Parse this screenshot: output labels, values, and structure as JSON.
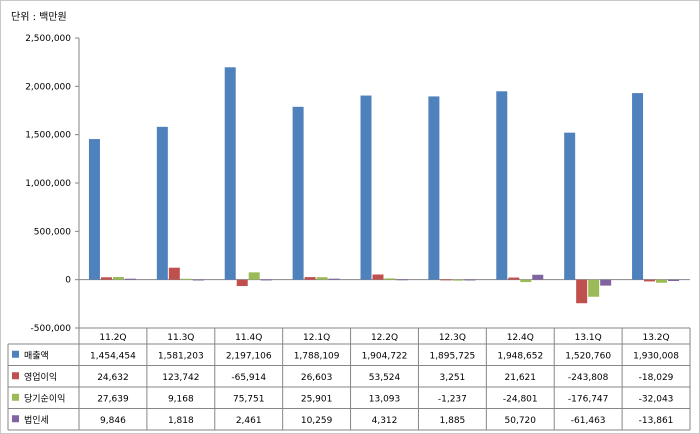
{
  "unit_label": "단위 : 백만원",
  "chart_data": {
    "type": "bar",
    "categories": [
      "11.2Q",
      "11.3Q",
      "11.4Q",
      "12.1Q",
      "12.2Q",
      "12.3Q",
      "12.4Q",
      "13.1Q",
      "13.2Q"
    ],
    "ylim": [
      -500000,
      2500000
    ],
    "yticks": [
      "2,500,000",
      "2,000,000",
      "1,500,000",
      "1,000,000",
      "500,000",
      "0",
      "-500,000"
    ],
    "grid": false,
    "legend": "table-left",
    "series": [
      {
        "name": "매출액",
        "color": "#4f81bd",
        "values": [
          1454454,
          1581203,
          2197106,
          1788109,
          1904722,
          1895725,
          1948652,
          1520760,
          1930008
        ],
        "labels": [
          "1,454,454",
          "1,581,203",
          "2,197,106",
          "1,788,109",
          "1,904,722",
          "1,895,725",
          "1,948,652",
          "1,520,760",
          "1,930,008"
        ]
      },
      {
        "name": "영업이익",
        "color": "#c0504d",
        "values": [
          24632,
          123742,
          -65914,
          26603,
          53524,
          3251,
          21621,
          -243808,
          -18029
        ],
        "labels": [
          "24,632",
          "123,742",
          "-65,914",
          "26,603",
          "53,524",
          "3,251",
          "21,621",
          "-243,808",
          "-18,029"
        ]
      },
      {
        "name": "당기순이익",
        "color": "#9bbb59",
        "values": [
          27639,
          9168,
          75751,
          25901,
          13093,
          -1237,
          -24801,
          -176747,
          -32043
        ],
        "labels": [
          "27,639",
          "9,168",
          "75,751",
          "25,901",
          "13,093",
          "-1,237",
          "-24,801",
          "-176,747",
          "-32,043"
        ]
      },
      {
        "name": "법인세",
        "color": "#8064a2",
        "values": [
          9846,
          1818,
          2461,
          10259,
          4312,
          1885,
          50720,
          -61463,
          -13861
        ],
        "labels": [
          "9,846",
          "1,818",
          "2,461",
          "10,259",
          "4,312",
          "1,885",
          "50,720",
          "-61,463",
          "-13,861"
        ]
      }
    ]
  }
}
